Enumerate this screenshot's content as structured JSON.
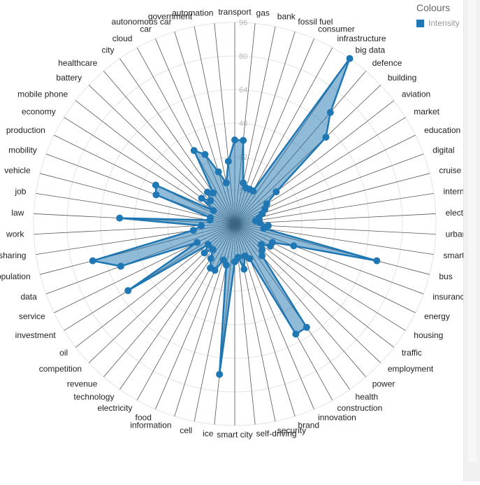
{
  "chart_data": {
    "type": "radar",
    "title": "",
    "rmax": 96,
    "ticks": [
      16,
      32,
      48,
      64,
      80,
      96
    ],
    "tick_labels": [
      "16",
      "32",
      "48",
      "64",
      "80",
      "96"
    ],
    "categories": [
      "transport",
      "gas",
      "bank",
      "fossil fuel",
      "consumer",
      "infrastructure",
      "big data",
      "defence",
      "building",
      "aviation",
      "market",
      "education",
      "digital",
      "cruise missile",
      "internet of things",
      "electronics",
      "urbanisation",
      "smartphone",
      "bus",
      "insurance",
      "energy",
      "housing",
      "traffic",
      "employment",
      "power",
      "health",
      "construction",
      "innovation",
      "brand",
      "security",
      "self-driving",
      "smart city",
      "ice",
      "cell",
      "information",
      "food",
      "electricity",
      "technology",
      "revenue",
      "competition",
      "oil",
      "investment",
      "service",
      "data",
      "population",
      "car sharing",
      "work",
      "law",
      "job",
      "vehicle",
      "mobility",
      "production",
      "economy",
      "mobile phone",
      "battery",
      "healthcare",
      "city",
      "cloud",
      "car",
      "autonomous car",
      "government",
      "automation"
    ],
    "series": [
      {
        "name": "Intensity",
        "color": "#1f77b4",
        "values": [
          40,
          40,
          20,
          18,
          18,
          18,
          96,
          70,
          60,
          25,
          18,
          16,
          14,
          12,
          10,
          12,
          16,
          14,
          70,
          30,
          20,
          20,
          16,
          18,
          20,
          60,
          60,
          18,
          16,
          22,
          16,
          18,
          72,
          20,
          18,
          24,
          24,
          20,
          16,
          20,
          16,
          60,
          20,
          58,
          70,
          20,
          16,
          55,
          12,
          12,
          40,
          42,
          12,
          20,
          16,
          20,
          18,
          40,
          36,
          26,
          20,
          30
        ]
      }
    ],
    "legend": {
      "title": "Colours",
      "position": "top-right"
    }
  }
}
